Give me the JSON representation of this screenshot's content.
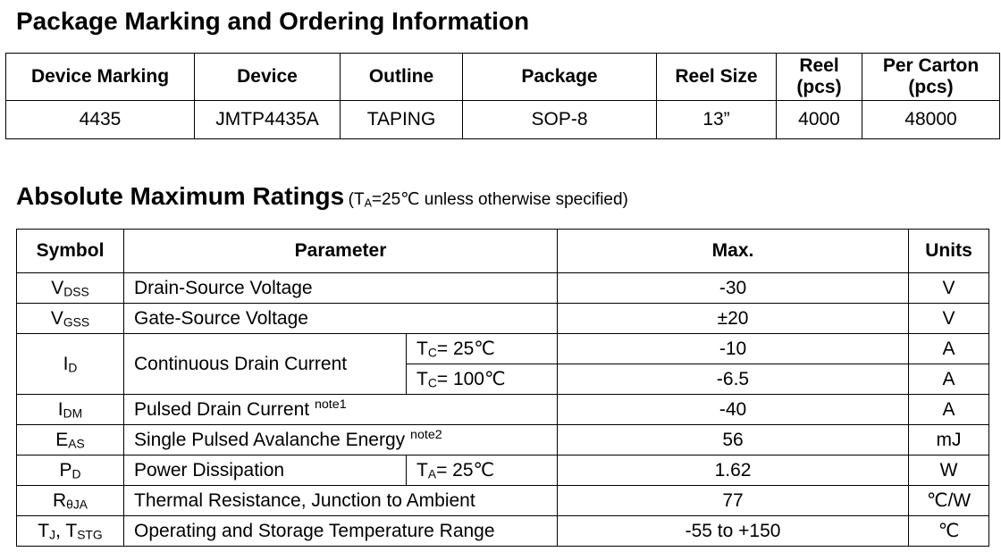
{
  "ordering": {
    "title": "Package Marking and Ordering Information",
    "headers": {
      "marking": "Device Marking",
      "device": "Device",
      "outline": "Outline",
      "package": "Package",
      "reel_size": "Reel Size",
      "reel_line1": "Reel",
      "reel_line2": "(pcs)",
      "carton_line1": "Per Carton",
      "carton_line2": "(pcs)"
    },
    "row": {
      "marking": "4435",
      "device": "JMTP4435A",
      "outline": "TAPING",
      "package": "SOP-8",
      "reel_size": "13”",
      "reel": "4000",
      "carton": "48000"
    }
  },
  "ratings": {
    "title": "Absolute Maximum Ratings",
    "cond_open": "(T",
    "cond_sub": "A",
    "cond_rest": "=25℃ unless otherwise specified)",
    "headers": {
      "symbol": "Symbol",
      "parameter": "Parameter",
      "max": "Max.",
      "units": "Units"
    },
    "rows": {
      "vdss": {
        "sym": "V",
        "sub": "DSS",
        "param": "Drain-Source Voltage",
        "max": "-30",
        "unit": "V"
      },
      "vgss": {
        "sym": "V",
        "sub": "GSS",
        "param": "Gate-Source Voltage",
        "max": "±20",
        "unit": "V"
      },
      "id": {
        "sym": "I",
        "sub": "D",
        "param": "Continuous Drain Current",
        "cond1_sym": "T",
        "cond1_sub": "C",
        "cond1_val": "= 25℃",
        "max1": "-10",
        "unit1": "A",
        "cond2_sym": "T",
        "cond2_sub": "C",
        "cond2_val": "= 100℃",
        "max2": "-6.5",
        "unit2": "A"
      },
      "idm": {
        "sym": "I",
        "sub": "DM",
        "param": "Pulsed Drain Current",
        "note": "note1",
        "max": "-40",
        "unit": "A"
      },
      "eas": {
        "sym": "E",
        "sub": "AS",
        "param": "Single Pulsed Avalanche Energy",
        "note": "note2",
        "max": "56",
        "unit": "mJ"
      },
      "pd": {
        "sym": "P",
        "sub": "D",
        "param": "Power Dissipation",
        "cond_sym": "T",
        "cond_sub": "A",
        "cond_val": "= 25℃",
        "max": "1.62",
        "unit": "W"
      },
      "rja": {
        "sym": "R",
        "sub": "θJA",
        "param": "Thermal Resistance, Junction to Ambient",
        "max": "77",
        "unit": "℃/W"
      },
      "tj": {
        "sym1": "T",
        "sub1": "J",
        "mid": ", T",
        "sub2": "STG",
        "param": "Operating and Storage Temperature Range",
        "max": "-55 to +150",
        "unit": "℃"
      }
    }
  }
}
